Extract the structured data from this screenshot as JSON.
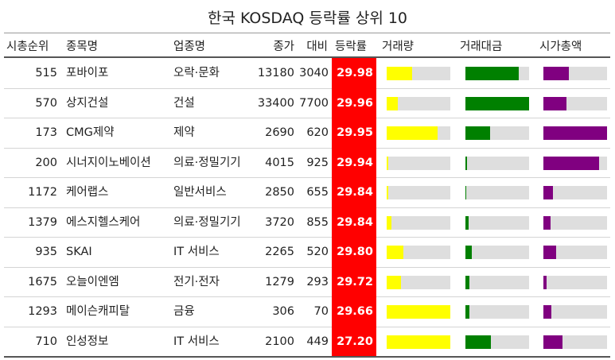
{
  "title": "한국 KOSDAQ 등락률 상위 10",
  "headers": {
    "rank": "시총순위",
    "name": "종목명",
    "sector": "업종명",
    "close": "종가",
    "change": "대비",
    "rate": "등락률",
    "volume": "거래량",
    "amount": "거래대금",
    "cap": "시가총액"
  },
  "colors": {
    "rate_bg": "#ff0000",
    "volume_bar": "#ffff00",
    "amount_bar": "#008000",
    "cap_bar": "#800080",
    "bar_track": "#dedede"
  },
  "chart_data": {
    "type": "table",
    "title": "한국 KOSDAQ 등락률 상위 10",
    "columns": [
      "시총순위",
      "종목명",
      "업종명",
      "종가",
      "대비",
      "등락률",
      "거래량",
      "거래대금",
      "시가총액"
    ],
    "rows": [
      {
        "rank": "515",
        "name": "포바이포",
        "sector": "오락·문화",
        "close": "13180",
        "change": "3040",
        "rate": "29.98",
        "volume_level": 0.4,
        "amount_level": 0.84,
        "cap_level": 0.4
      },
      {
        "rank": "570",
        "name": "상지건설",
        "sector": "건설",
        "close": "33400",
        "change": "7700",
        "rate": "29.96",
        "volume_level": 0.17,
        "amount_level": 1.0,
        "cap_level": 0.36
      },
      {
        "rank": "173",
        "name": "CMG제약",
        "sector": "제약",
        "close": "2690",
        "change": "620",
        "rate": "29.95",
        "volume_level": 0.8,
        "amount_level": 0.39,
        "cap_level": 1.0
      },
      {
        "rank": "200",
        "name": "시너지이노베이션",
        "sector": "의료·정밀기기",
        "close": "4015",
        "change": "925",
        "rate": "29.94",
        "volume_level": 0.02,
        "amount_level": 0.02,
        "cap_level": 0.88
      },
      {
        "rank": "1172",
        "name": "케어랩스",
        "sector": "일반서비스",
        "close": "2850",
        "change": "655",
        "rate": "29.84",
        "volume_level": 0.03,
        "amount_level": 0.01,
        "cap_level": 0.15
      },
      {
        "rank": "1379",
        "name": "에스지헬스케어",
        "sector": "의료·정밀기기",
        "close": "3720",
        "change": "855",
        "rate": "29.84",
        "volume_level": 0.08,
        "amount_level": 0.05,
        "cap_level": 0.11
      },
      {
        "rank": "935",
        "name": "SKAI",
        "sector": "IT 서비스",
        "close": "2265",
        "change": "520",
        "rate": "29.80",
        "volume_level": 0.26,
        "amount_level": 0.1,
        "cap_level": 0.2
      },
      {
        "rank": "1675",
        "name": "오늘이엔엠",
        "sector": "전기·전자",
        "close": "1279",
        "change": "293",
        "rate": "29.72",
        "volume_level": 0.23,
        "amount_level": 0.06,
        "cap_level": 0.05
      },
      {
        "rank": "1293",
        "name": "메이슨캐피탈",
        "sector": "금융",
        "close": "306",
        "change": "70",
        "rate": "29.66",
        "volume_level": 1.0,
        "amount_level": 0.06,
        "cap_level": 0.13
      },
      {
        "rank": "710",
        "name": "인성정보",
        "sector": "IT 서비스",
        "close": "2100",
        "change": "449",
        "rate": "27.20",
        "volume_level": 1.0,
        "amount_level": 0.4,
        "cap_level": 0.3
      }
    ]
  }
}
